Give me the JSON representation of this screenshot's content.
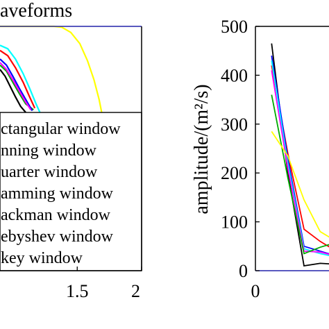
{
  "chart_data": [
    {
      "type": "line",
      "title": "aveforms",
      "xlabel": "",
      "ylabel": "",
      "xlim": [
        0.9,
        2.0
      ],
      "ylim": [
        0,
        1
      ],
      "x_ticks": [
        "1.5",
        "2"
      ],
      "x_tick_values": [
        1.5,
        2.0
      ],
      "legend_entries": [
        "ctangular window",
        "nning window",
        "uarter window",
        "amming window",
        "ackman window",
        "ebyshev window",
        "key window"
      ],
      "series": [
        {
          "color": "#ffff00",
          "x": [
            0.9,
            1.32,
            1.38,
            1.45,
            1.52,
            1.58,
            1.63,
            1.67,
            1.69
          ],
          "y": [
            1.0,
            1.0,
            0.99,
            0.93,
            0.8,
            0.6,
            0.38,
            0.15,
            0.0
          ]
        },
        {
          "color": "#00ffff",
          "x": [
            0.9,
            0.96,
            1.02,
            1.08,
            1.13,
            1.18,
            1.21
          ],
          "y": [
            0.78,
            0.74,
            0.62,
            0.45,
            0.28,
            0.1,
            0.0
          ]
        },
        {
          "color": "#ff0000",
          "x": [
            0.9,
            0.96,
            1.02,
            1.08,
            1.13,
            1.17
          ],
          "y": [
            0.72,
            0.66,
            0.52,
            0.35,
            0.18,
            0.05
          ]
        },
        {
          "color": "#00aa00",
          "x": [
            0.9,
            0.95,
            1.0,
            1.05,
            1.1,
            1.16
          ],
          "y": [
            0.55,
            0.48,
            0.35,
            0.22,
            0.1,
            0.03
          ]
        },
        {
          "color": "#0000ff",
          "x": [
            0.9,
            0.95,
            1.0,
            1.05,
            1.1,
            1.15
          ],
          "y": [
            0.62,
            0.55,
            0.42,
            0.28,
            0.15,
            0.02
          ]
        },
        {
          "color": "#ff00ff",
          "x": [
            0.9,
            0.95,
            1.0,
            1.05,
            1.1,
            1.14
          ],
          "y": [
            0.58,
            0.5,
            0.38,
            0.25,
            0.12,
            0.03
          ]
        },
        {
          "color": "#000000",
          "x": [
            0.9,
            0.94,
            0.98,
            1.02,
            1.06,
            1.1
          ],
          "y": [
            0.5,
            0.42,
            0.3,
            0.18,
            0.07,
            0.0
          ]
        }
      ]
    },
    {
      "type": "line",
      "title": "",
      "xlabel": "",
      "ylabel": "amplitude/(m²/s)",
      "ylim": [
        0,
        500
      ],
      "xlim": [
        0,
        1.2
      ],
      "x_ticks": [
        "0"
      ],
      "x_tick_values": [
        0
      ],
      "y_ticks": [
        "0",
        "100",
        "200",
        "300",
        "400",
        "500"
      ],
      "y_tick_values": [
        0,
        100,
        200,
        300,
        400,
        500
      ],
      "series": [
        {
          "color": "#000000",
          "x": [
            0.1,
            0.2,
            0.3,
            0.4,
            0.5,
            0.6
          ],
          "y": [
            465,
            200,
            10,
            15,
            13,
            12
          ]
        },
        {
          "color": "#ff0000",
          "x": [
            0.1,
            0.2,
            0.3,
            0.4,
            0.5,
            0.6
          ],
          "y": [
            420,
            240,
            85,
            60,
            40,
            25
          ]
        },
        {
          "color": "#0000ff",
          "x": [
            0.1,
            0.2,
            0.3,
            0.4,
            0.5,
            0.6
          ],
          "y": [
            440,
            230,
            50,
            40,
            30,
            22
          ]
        },
        {
          "color": "#00ffff",
          "x": [
            0.1,
            0.2,
            0.3,
            0.4,
            0.5,
            0.6
          ],
          "y": [
            430,
            220,
            45,
            35,
            28,
            20
          ]
        },
        {
          "color": "#ff00ff",
          "x": [
            0.1,
            0.2,
            0.3,
            0.4,
            0.5,
            0.6
          ],
          "y": [
            410,
            210,
            40,
            38,
            30,
            22
          ]
        },
        {
          "color": "#00aa00",
          "x": [
            0.1,
            0.2,
            0.3,
            0.4,
            0.5,
            0.6
          ],
          "y": [
            360,
            190,
            35,
            48,
            58,
            42
          ]
        },
        {
          "color": "#ffff00",
          "x": [
            0.1,
            0.2,
            0.3,
            0.4,
            0.5,
            0.6
          ],
          "y": [
            285,
            235,
            145,
            80,
            60,
            65
          ]
        }
      ]
    }
  ]
}
